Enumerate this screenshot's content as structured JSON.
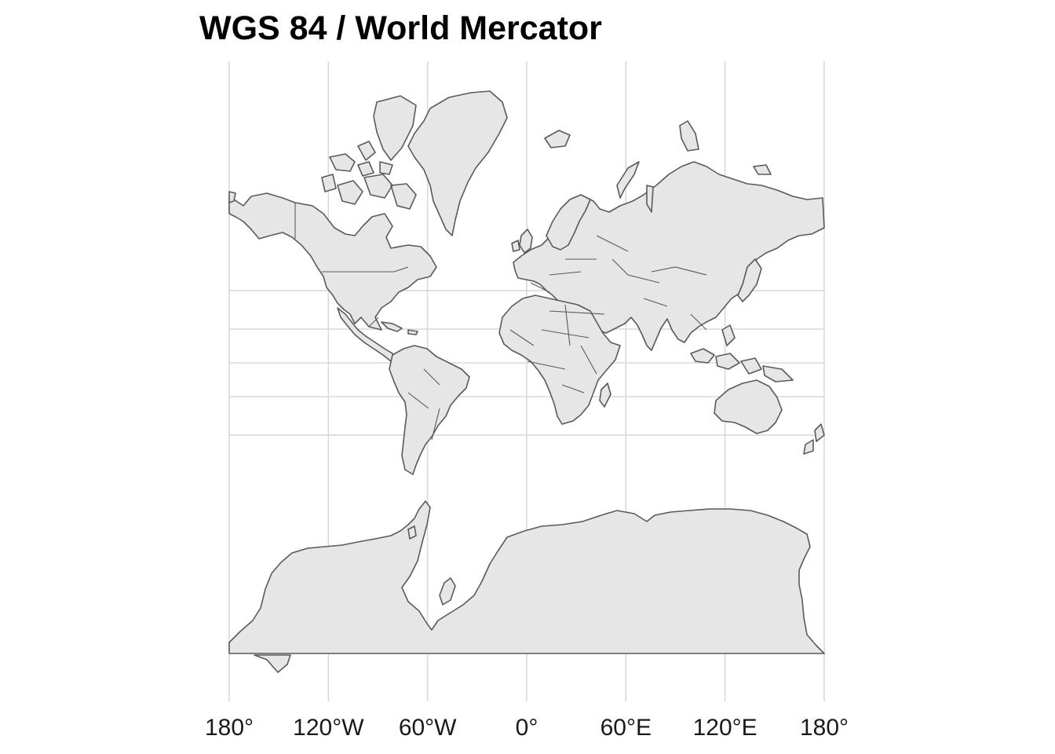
{
  "title": "WGS 84 / World Mercator",
  "colors": {
    "land": "#e6e6e6",
    "outline": "#5a5a5a",
    "grid": "#d9d9d9",
    "background": "#ffffff"
  },
  "x_axis": {
    "tick_values": [
      -180,
      -120,
      -60,
      0,
      60,
      120,
      180
    ],
    "tick_labels": [
      "180°",
      "120°W",
      "60°W",
      "0°",
      "60°E",
      "120°E",
      "180°"
    ]
  },
  "y_axis": {
    "graticule_latitudes": [
      -85,
      -40,
      -20,
      0,
      20,
      40,
      60,
      80
    ],
    "tick_labels_shown": false
  },
  "features": [
    "North America",
    "Greenland",
    "South America",
    "Europe",
    "Africa",
    "Asia",
    "Australia",
    "Antarctica"
  ]
}
